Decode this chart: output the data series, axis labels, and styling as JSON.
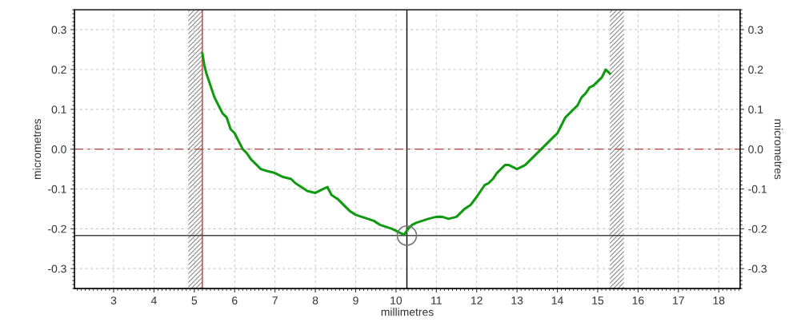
{
  "chart_data": {
    "type": "line",
    "xlabel": "millimetres",
    "ylabel": "micrometres",
    "y2label": "micrometres",
    "xlim": [
      2.03,
      18.53
    ],
    "xticks": [
      3,
      4,
      5,
      6,
      7,
      8,
      9,
      10,
      11,
      12,
      13,
      14,
      15,
      16,
      17,
      18
    ],
    "ylim": [
      -0.35,
      0.35
    ],
    "yticks": [
      {
        "value": -0.3,
        "label": "-0.3"
      },
      {
        "value": -0.2,
        "label": "-0.2"
      },
      {
        "value": -0.1,
        "label": "-0.1"
      },
      {
        "value": 0.0,
        "label": "0.0"
      },
      {
        "value": 0.1,
        "label": "0.1"
      },
      {
        "value": 0.2,
        "label": "0.2"
      },
      {
        "value": 0.3,
        "label": "0.3"
      }
    ],
    "y2lim": [
      -0.35,
      0.35
    ],
    "y2ticks": [
      {
        "value": -0.3,
        "label": "-0.3"
      },
      {
        "value": -0.2,
        "label": "-0.2"
      },
      {
        "value": -0.1,
        "label": "-0.1"
      },
      {
        "value": 0.0,
        "label": "0.0"
      },
      {
        "value": 0.1,
        "label": "0.1"
      },
      {
        "value": 0.2,
        "label": "0.2"
      },
      {
        "value": 0.3,
        "label": "0.3"
      }
    ],
    "grid": true,
    "legend": false,
    "series": [
      {
        "color": "#119911",
        "marker": "none",
        "line_style": "solid",
        "x": [
          5.2,
          5.25,
          5.3,
          5.4,
          5.5,
          5.6,
          5.7,
          5.8,
          5.9,
          6.0,
          6.1,
          6.2,
          6.3,
          6.4,
          6.5,
          6.65,
          6.8,
          7.0,
          7.2,
          7.4,
          7.5,
          7.65,
          7.8,
          8.0,
          8.2,
          8.3,
          8.4,
          8.55,
          8.7,
          8.85,
          9.0,
          9.15,
          9.3,
          9.45,
          9.6,
          9.75,
          9.9,
          10.0,
          10.1,
          10.2,
          10.3,
          10.4,
          10.5,
          10.65,
          10.8,
          11.0,
          11.15,
          11.3,
          11.5,
          11.6,
          11.7,
          11.85,
          12.0,
          12.1,
          12.2,
          12.3,
          12.4,
          12.5,
          12.6,
          12.7,
          12.8,
          12.9,
          13.0,
          13.1,
          13.2,
          13.3,
          13.4,
          13.5,
          13.6,
          13.7,
          13.8,
          13.9,
          14.0,
          14.1,
          14.2,
          14.3,
          14.4,
          14.5,
          14.6,
          14.7,
          14.8,
          14.9,
          15.0,
          15.1,
          15.2,
          15.3
        ],
        "values": [
          0.24,
          0.21,
          0.19,
          0.16,
          0.13,
          0.11,
          0.09,
          0.08,
          0.05,
          0.04,
          0.02,
          0.0,
          -0.01,
          -0.025,
          -0.035,
          -0.05,
          -0.055,
          -0.06,
          -0.07,
          -0.075,
          -0.085,
          -0.095,
          -0.105,
          -0.11,
          -0.1,
          -0.095,
          -0.115,
          -0.125,
          -0.14,
          -0.155,
          -0.165,
          -0.17,
          -0.175,
          -0.18,
          -0.19,
          -0.195,
          -0.2,
          -0.205,
          -0.21,
          -0.215,
          -0.2,
          -0.19,
          -0.185,
          -0.18,
          -0.175,
          -0.17,
          -0.17,
          -0.175,
          -0.17,
          -0.16,
          -0.15,
          -0.14,
          -0.12,
          -0.105,
          -0.09,
          -0.085,
          -0.075,
          -0.06,
          -0.05,
          -0.04,
          -0.04,
          -0.045,
          -0.05,
          -0.045,
          -0.04,
          -0.03,
          -0.02,
          -0.01,
          0.0,
          0.01,
          0.02,
          0.03,
          0.04,
          0.06,
          0.08,
          0.09,
          0.1,
          0.11,
          0.13,
          0.14,
          0.155,
          0.16,
          0.17,
          0.18,
          0.2,
          0.19
        ]
      },
      {
        "type": "scatter",
        "color": "#777777",
        "marker": "circle",
        "x": [
          10.27
        ],
        "values": [
          -0.217
        ]
      }
    ],
    "ref_lines": [
      {
        "axis": "y",
        "value": 0.0,
        "color": "#b04040",
        "line_style": "dashed"
      },
      {
        "axis": "x",
        "value": 5.2,
        "color": "#b04040",
        "line_style": "solid"
      },
      {
        "axis": "x",
        "value": 10.27,
        "color": "#000000",
        "line_style": "solid"
      },
      {
        "axis": "y",
        "value": -0.217,
        "color": "#444444",
        "line_style": "solid"
      }
    ],
    "bands": [
      {
        "axis": "x",
        "from": 4.85,
        "to": 5.2,
        "color": "#888888"
      },
      {
        "axis": "x",
        "from": 15.3,
        "to": 15.65,
        "color": "#888888"
      }
    ]
  }
}
